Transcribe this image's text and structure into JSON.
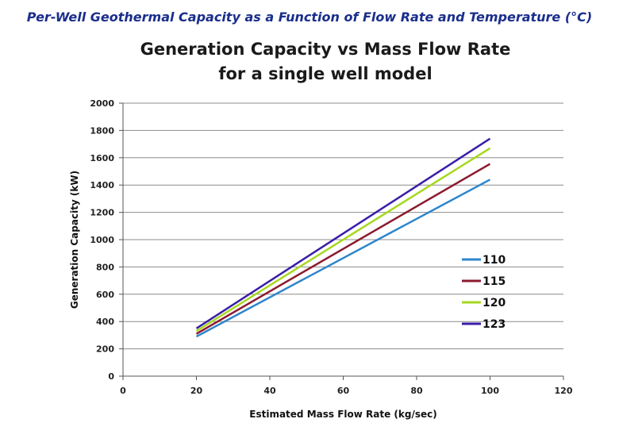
{
  "header": "Per-Well Geothermal Capacity as a Function of Flow Rate and Temperature (°C)",
  "chart_data": {
    "type": "line",
    "title_line1": "Generation Capacity vs Mass Flow Rate",
    "title_line2": "for a single well model",
    "xlabel": "Estimated Mass Flow Rate (kg/sec)",
    "ylabel": "Generation Capacity (kW)",
    "xlim": [
      0,
      120
    ],
    "ylim": [
      0,
      2000
    ],
    "xticks": [
      0,
      20,
      40,
      60,
      80,
      100,
      120
    ],
    "yticks": [
      0,
      200,
      400,
      600,
      800,
      1000,
      1200,
      1400,
      1600,
      1800,
      2000
    ],
    "grid": "horizontal",
    "legend_position": "right",
    "series": [
      {
        "name": "110",
        "color": "#2e86cc",
        "x": [
          20,
          100
        ],
        "y": [
          290,
          1440
        ]
      },
      {
        "name": "115",
        "color": "#8b1a2e",
        "x": [
          20,
          100
        ],
        "y": [
          310,
          1555
        ]
      },
      {
        "name": "120",
        "color": "#a6d81e",
        "x": [
          20,
          100
        ],
        "y": [
          330,
          1670
        ]
      },
      {
        "name": "123",
        "color": "#3a1ea8",
        "x": [
          20,
          100
        ],
        "y": [
          350,
          1740
        ]
      }
    ]
  }
}
